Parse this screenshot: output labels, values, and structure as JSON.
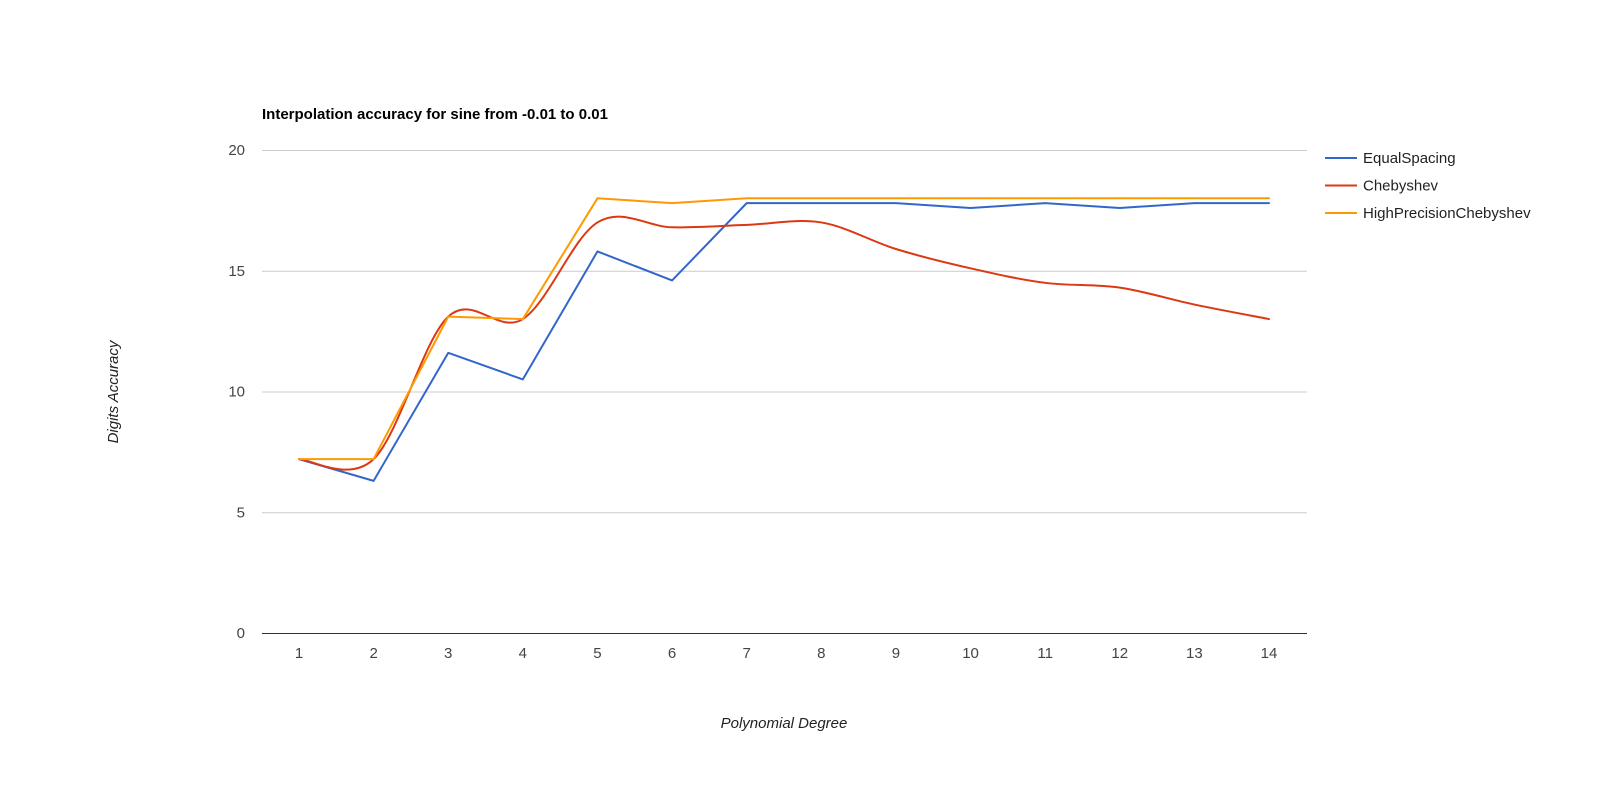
{
  "chart_data": {
    "type": "line",
    "title": "Interpolation accuracy for sine from -0.01 to 0.01",
    "xlabel": "Polynomial Degree",
    "ylabel": "Digits Accuracy",
    "x": [
      1,
      2,
      3,
      4,
      5,
      6,
      7,
      8,
      9,
      10,
      11,
      12,
      13,
      14
    ],
    "x_tick_labels": [
      "1",
      "2",
      "3",
      "4",
      "5",
      "6",
      "7",
      "8",
      "9",
      "10",
      "11",
      "12",
      "13",
      "14"
    ],
    "y_ticks": [
      0,
      5,
      10,
      15,
      20
    ],
    "y_tick_labels": [
      "0",
      "5",
      "10",
      "15",
      "20"
    ],
    "ylim": [
      0,
      20
    ],
    "grid": true,
    "legend_position": "right",
    "series": [
      {
        "name": "EqualSpacing",
        "color": "#3366cc",
        "curve": "linear",
        "values": [
          7.2,
          6.3,
          11.6,
          10.5,
          15.8,
          14.6,
          17.8,
          17.8,
          17.8,
          17.6,
          17.8,
          17.6,
          17.8,
          17.8
        ]
      },
      {
        "name": "Chebyshev",
        "color": "#dc3912",
        "curve": "smooth",
        "values": [
          7.2,
          7.2,
          13.1,
          13.0,
          17.0,
          16.8,
          16.9,
          17.0,
          15.9,
          15.1,
          14.5,
          14.3,
          13.6,
          13.0
        ]
      },
      {
        "name": "HighPrecisionChebyshev",
        "color": "#ff9900",
        "curve": "linear",
        "values": [
          7.2,
          7.2,
          13.1,
          13.0,
          18.0,
          17.8,
          18.0,
          18.0,
          18.0,
          18.0,
          18.0,
          18.0,
          18.0,
          18.0
        ]
      }
    ]
  }
}
